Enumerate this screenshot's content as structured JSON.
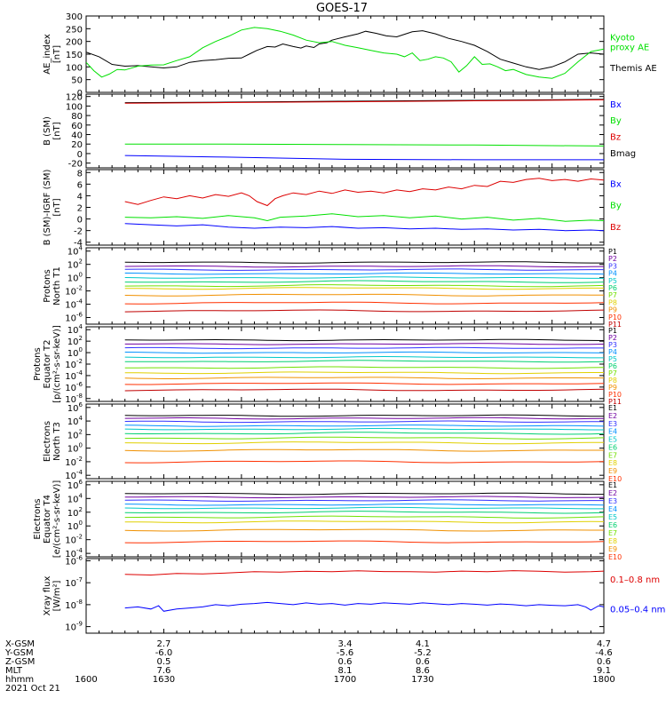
{
  "title": "GOES-17",
  "colors": {
    "black": "#000000",
    "blue": "#0000ff",
    "green": "#00e000",
    "red": "#dd0000",
    "p": [
      "#000000",
      "#7000a0",
      "#3030ff",
      "#0090ff",
      "#00c8c8",
      "#00d070",
      "#70e000",
      "#e0d000",
      "#f09000",
      "#ff3000",
      "#c00000"
    ]
  },
  "chart_data": [
    {
      "id": "ae",
      "type": "line",
      "ylabel": "AE_index\n[nT]",
      "yticks": [
        "300",
        "250",
        "200",
        "150",
        "100",
        "50",
        "0"
      ],
      "ylim": [
        0,
        300
      ],
      "legend": [
        {
          "label": "Kyoto\nproxy AE",
          "color": "#00e000"
        },
        {
          "label": "Themis AE",
          "color": "#000000"
        }
      ],
      "series": [
        {
          "name": "Themis AE",
          "color": "#000000",
          "x": [
            1600,
            1605,
            1610,
            1615,
            1620,
            1625,
            1630,
            1635,
            1640,
            1645,
            1650,
            1655,
            1660,
            1663,
            1666,
            1670,
            1673,
            1676,
            1680,
            1683,
            1685,
            1688,
            1690,
            1693,
            1695,
            1700,
            1705,
            1708,
            1712,
            1716,
            1720,
            1723,
            1726,
            1730,
            1735,
            1740,
            1745,
            1750,
            1755,
            1760,
            1765,
            1770,
            1775,
            1780,
            1785,
            1790,
            1795,
            1800
          ],
          "y": [
            158,
            140,
            110,
            103,
            105,
            100,
            96,
            100,
            118,
            125,
            128,
            134,
            135,
            150,
            165,
            180,
            178,
            190,
            180,
            174,
            182,
            176,
            190,
            195,
            205,
            218,
            230,
            240,
            232,
            222,
            218,
            228,
            238,
            242,
            230,
            212,
            200,
            185,
            160,
            130,
            115,
            100,
            90,
            100,
            120,
            150,
            155,
            150
          ]
        },
        {
          "name": "Kyoto proxy AE",
          "color": "#00e000",
          "x": [
            1600,
            1603,
            1606,
            1609,
            1612,
            1615,
            1620,
            1625,
            1630,
            1635,
            1640,
            1645,
            1650,
            1655,
            1660,
            1665,
            1670,
            1675,
            1680,
            1685,
            1690,
            1695,
            1700,
            1705,
            1710,
            1715,
            1720,
            1723,
            1726,
            1729,
            1732,
            1735,
            1738,
            1741,
            1744,
            1747,
            1750,
            1753,
            1756,
            1759,
            1762,
            1765,
            1770,
            1775,
            1780,
            1785,
            1790,
            1795,
            1800
          ],
          "y": [
            118,
            85,
            60,
            72,
            90,
            88,
            103,
            107,
            108,
            125,
            140,
            175,
            200,
            220,
            245,
            255,
            250,
            240,
            225,
            205,
            195,
            200,
            185,
            175,
            165,
            155,
            150,
            140,
            155,
            125,
            130,
            140,
            135,
            120,
            80,
            105,
            140,
            110,
            112,
            100,
            85,
            90,
            70,
            60,
            55,
            75,
            120,
            160,
            170
          ]
        }
      ]
    },
    {
      "id": "bsm",
      "type": "line",
      "ylabel": "B (SM)\n[nT]",
      "yticks": [
        "120",
        "100",
        "80",
        "60",
        "40",
        "20",
        "0",
        "-20"
      ],
      "ylim": [
        -30,
        125
      ],
      "legend": [
        {
          "label": "Bx",
          "color": "#0000ff"
        },
        {
          "label": "By",
          "color": "#00e000"
        },
        {
          "label": "Bz",
          "color": "#dd0000"
        },
        {
          "label": "Bmag",
          "color": "#000000"
        }
      ],
      "series": [
        {
          "name": "Bmag",
          "color": "#000000",
          "x": [
            1615,
            1650,
            1700,
            1750,
            1800
          ],
          "y": [
            107,
            108,
            110,
            112,
            114
          ]
        },
        {
          "name": "Bz",
          "color": "#dd0000",
          "x": [
            1615,
            1650,
            1700,
            1750,
            1800
          ],
          "y": [
            106,
            107,
            109,
            111,
            113
          ]
        },
        {
          "name": "By",
          "color": "#00e000",
          "x": [
            1615,
            1650,
            1700,
            1750,
            1800
          ],
          "y": [
            20,
            20,
            19,
            18,
            16
          ]
        },
        {
          "name": "Bx",
          "color": "#0000ff",
          "x": [
            1615,
            1650,
            1700,
            1750,
            1800
          ],
          "y": [
            -4,
            -7,
            -12,
            -13,
            -13
          ]
        }
      ]
    },
    {
      "id": "bigrf",
      "type": "line",
      "ylabel": "B (SM)-IGRF (SM)\n[nT]",
      "yticks": [
        "8",
        "6",
        "4",
        "2",
        "0",
        "-2",
        "-4"
      ],
      "ylim": [
        -4.5,
        8.5
      ],
      "legend": [
        {
          "label": "Bx",
          "color": "#0000ff"
        },
        {
          "label": "By",
          "color": "#00e000"
        },
        {
          "label": "Bz",
          "color": "#dd0000"
        }
      ],
      "series": [
        {
          "name": "Bz",
          "color": "#dd0000",
          "x": [
            1615,
            1620,
            1625,
            1630,
            1635,
            1640,
            1645,
            1650,
            1655,
            1660,
            1663,
            1666,
            1670,
            1673,
            1676,
            1680,
            1685,
            1690,
            1695,
            1700,
            1705,
            1710,
            1715,
            1720,
            1725,
            1730,
            1735,
            1740,
            1745,
            1750,
            1755,
            1760,
            1765,
            1770,
            1775,
            1780,
            1785,
            1790,
            1795,
            1800
          ],
          "y": [
            3.0,
            2.5,
            3.2,
            3.8,
            3.5,
            4.0,
            3.6,
            4.2,
            3.9,
            4.5,
            4.0,
            3.0,
            2.3,
            3.5,
            4.0,
            4.5,
            4.2,
            4.8,
            4.4,
            5.0,
            4.6,
            4.8,
            4.5,
            5.0,
            4.7,
            5.2,
            5.0,
            5.5,
            5.2,
            5.8,
            5.6,
            6.5,
            6.3,
            6.8,
            7.0,
            6.6,
            6.8,
            6.5,
            6.9,
            6.7
          ]
        },
        {
          "name": "By",
          "color": "#00e000",
          "x": [
            1615,
            1625,
            1635,
            1645,
            1655,
            1665,
            1670,
            1675,
            1685,
            1695,
            1705,
            1715,
            1725,
            1735,
            1745,
            1755,
            1765,
            1775,
            1785,
            1795,
            1800
          ],
          "y": [
            0.3,
            0.2,
            0.4,
            0.1,
            0.6,
            0.2,
            -0.3,
            0.3,
            0.5,
            0.9,
            0.4,
            0.6,
            0.2,
            0.5,
            0.0,
            0.3,
            -0.2,
            0.1,
            -0.4,
            -0.2,
            -0.3
          ]
        },
        {
          "name": "Bx",
          "color": "#0000ff",
          "x": [
            1615,
            1625,
            1635,
            1645,
            1655,
            1665,
            1675,
            1685,
            1695,
            1705,
            1715,
            1725,
            1735,
            1745,
            1755,
            1765,
            1775,
            1785,
            1795,
            1800
          ],
          "y": [
            -0.8,
            -1.0,
            -1.2,
            -1.0,
            -1.4,
            -1.6,
            -1.4,
            -1.5,
            -1.3,
            -1.6,
            -1.5,
            -1.7,
            -1.6,
            -1.8,
            -1.7,
            -1.9,
            -1.8,
            -2.0,
            -1.9,
            -2.0
          ]
        }
      ]
    },
    {
      "id": "protons_n",
      "type": "line",
      "log": true,
      "ylabel": "Protons\nNorth T1",
      "yticks": [
        {
          "m": "10",
          "e": "4",
          "v": 4
        },
        {
          "m": "10",
          "e": "2",
          "v": 2
        },
        {
          "m": "10",
          "e": "0",
          "v": 0
        },
        {
          "m": "10",
          "e": "-2",
          "v": -2
        },
        {
          "m": "10",
          "e": "-4",
          "v": -4
        },
        {
          "m": "10",
          "e": "-6",
          "v": -6
        }
      ],
      "ylim": [
        -7,
        4.5
      ],
      "legend": [
        "P1",
        "P2",
        "P3",
        "P4",
        "P5",
        "P6",
        "P7",
        "P8",
        "P9",
        "P10",
        "P11"
      ],
      "levels": [
        2.3,
        1.7,
        1.2,
        0.6,
        0.0,
        -0.6,
        -1.2,
        -1.6,
        -2.6,
        -3.8,
        -5.0
      ]
    },
    {
      "id": "protons_e",
      "type": "line",
      "log": true,
      "ylabel": "Protons\nEquator T2\n[p/(cm²-s-sr-keV)]",
      "yticks": [
        {
          "m": "10",
          "e": "4",
          "v": 4
        },
        {
          "m": "10",
          "e": "2",
          "v": 2
        },
        {
          "m": "10",
          "e": "0",
          "v": 0
        },
        {
          "m": "10",
          "e": "-2",
          "v": -2
        },
        {
          "m": "10",
          "e": "-4",
          "v": -4
        },
        {
          "m": "10",
          "e": "-6",
          "v": -6
        },
        {
          "m": "10",
          "e": "-8",
          "v": -8
        }
      ],
      "ylim": [
        -8.5,
        4.5
      ],
      "legend": [
        "P1",
        "P2",
        "P3",
        "P4",
        "P5",
        "P6",
        "P7",
        "P8",
        "P9",
        "P10",
        "P11"
      ],
      "levels": [
        2.2,
        1.5,
        0.8,
        0.0,
        -0.8,
        -1.5,
        -2.6,
        -3.5,
        -4.4,
        -5.4,
        -6.5
      ]
    },
    {
      "id": "electrons_n",
      "type": "line",
      "log": true,
      "ylabel": "Electrons\nNorth T3",
      "yticks": [
        {
          "m": "10",
          "e": "6",
          "v": 6
        },
        {
          "m": "10",
          "e": "4",
          "v": 4
        },
        {
          "m": "10",
          "e": "2",
          "v": 2
        },
        {
          "m": "10",
          "e": "0",
          "v": 0
        },
        {
          "m": "10",
          "e": "-2",
          "v": -2
        },
        {
          "m": "10",
          "e": "-4",
          "v": -4
        }
      ],
      "ylim": [
        -4.5,
        6.5
      ],
      "legend": [
        "E1",
        "E2",
        "E3",
        "E4",
        "E5",
        "E6",
        "E7",
        "E8",
        "E9",
        "E10"
      ],
      "levels": [
        4.8,
        4.4,
        3.9,
        3.3,
        2.8,
        2.2,
        1.5,
        0.8,
        -0.3,
        -2.0
      ]
    },
    {
      "id": "electrons_e",
      "type": "line",
      "log": true,
      "ylabel": "Electrons\nEquator T4\n[e/(cm²-s-sr-keV)]",
      "yticks": [
        {
          "m": "10",
          "e": "6",
          "v": 6
        },
        {
          "m": "10",
          "e": "4",
          "v": 4
        },
        {
          "m": "10",
          "e": "2",
          "v": 2
        },
        {
          "m": "10",
          "e": "0",
          "v": 0
        },
        {
          "m": "10",
          "e": "-2",
          "v": -2
        },
        {
          "m": "10",
          "e": "-4",
          "v": -4
        }
      ],
      "ylim": [
        -4.5,
        6.5
      ],
      "legend": [
        "E1",
        "E2",
        "E3",
        "E4",
        "E5",
        "E6",
        "E7",
        "E8",
        "E9",
        "E10"
      ],
      "levels": [
        4.7,
        4.2,
        3.7,
        3.1,
        2.6,
        2.0,
        1.3,
        0.6,
        -0.6,
        -2.3
      ]
    },
    {
      "id": "xray",
      "type": "line",
      "log": true,
      "ylabel": "Xray flux\n[W/m²]",
      "yticks": [
        {
          "m": "10",
          "e": "-6",
          "v": -6
        },
        {
          "m": "10",
          "e": "-7",
          "v": -7
        },
        {
          "m": "10",
          "e": "-8",
          "v": -8
        },
        {
          "m": "10",
          "e": "-9",
          "v": -9
        }
      ],
      "ylim": [
        -9.3,
        -5.9
      ],
      "legend": [
        {
          "label": "0.1–0.8 nm",
          "color": "#dd0000"
        },
        {
          "label": "0.05–0.4 nm",
          "color": "#0000ff"
        }
      ],
      "series": [
        {
          "name": "0.1–0.8 nm",
          "color": "#dd0000",
          "x": [
            1615,
            1625,
            1635,
            1645,
            1655,
            1665,
            1675,
            1685,
            1695,
            1705,
            1715,
            1725,
            1735,
            1745,
            1755,
            1765,
            1775,
            1785,
            1795,
            1800
          ],
          "y": [
            -6.62,
            -6.65,
            -6.58,
            -6.6,
            -6.55,
            -6.5,
            -6.52,
            -6.48,
            -6.5,
            -6.46,
            -6.49,
            -6.5,
            -6.52,
            -6.47,
            -6.5,
            -6.45,
            -6.48,
            -6.52,
            -6.5,
            -6.47
          ]
        },
        {
          "name": "0.05–0.4 nm",
          "color": "#0000ff",
          "x": [
            1615,
            1620,
            1625,
            1628,
            1630,
            1635,
            1640,
            1645,
            1650,
            1655,
            1660,
            1665,
            1670,
            1675,
            1680,
            1685,
            1690,
            1695,
            1700,
            1705,
            1710,
            1715,
            1720,
            1725,
            1730,
            1735,
            1740,
            1745,
            1750,
            1755,
            1760,
            1765,
            1770,
            1775,
            1780,
            1785,
            1790,
            1793,
            1795,
            1798,
            1800
          ],
          "y": [
            -8.15,
            -8.1,
            -8.2,
            -8.05,
            -8.3,
            -8.2,
            -8.15,
            -8.1,
            -8.0,
            -8.05,
            -7.98,
            -7.95,
            -7.9,
            -7.95,
            -8.0,
            -7.92,
            -7.98,
            -7.95,
            -8.02,
            -7.95,
            -7.98,
            -7.92,
            -7.95,
            -7.98,
            -7.92,
            -7.96,
            -8.0,
            -7.95,
            -7.98,
            -8.02,
            -7.97,
            -8.0,
            -8.05,
            -8.0,
            -8.03,
            -8.05,
            -8.0,
            -8.1,
            -8.25,
            -8.05,
            -8.1
          ]
        }
      ]
    }
  ],
  "xaxis": {
    "rows": [
      {
        "label": "X-GSM",
        "values": [
          "",
          "2.7",
          "3.4",
          "4.1",
          "4.7"
        ]
      },
      {
        "label": "Y-GSM",
        "values": [
          "",
          "-6.0",
          "-5.6",
          "-5.2",
          "-4.6"
        ]
      },
      {
        "label": "Z-GSM",
        "values": [
          "",
          "0.5",
          "0.6",
          "0.6",
          "0.6"
        ]
      },
      {
        "label": "MLT",
        "values": [
          "",
          "7.6",
          "8.1",
          "8.6",
          "9.1"
        ]
      },
      {
        "label": "hhmm",
        "values": [
          "1600",
          "1630",
          "1700",
          "1730",
          "1800"
        ]
      }
    ],
    "date": "2021 Oct 21",
    "ticks": [
      1600,
      1630,
      1700,
      1730,
      1800
    ]
  }
}
